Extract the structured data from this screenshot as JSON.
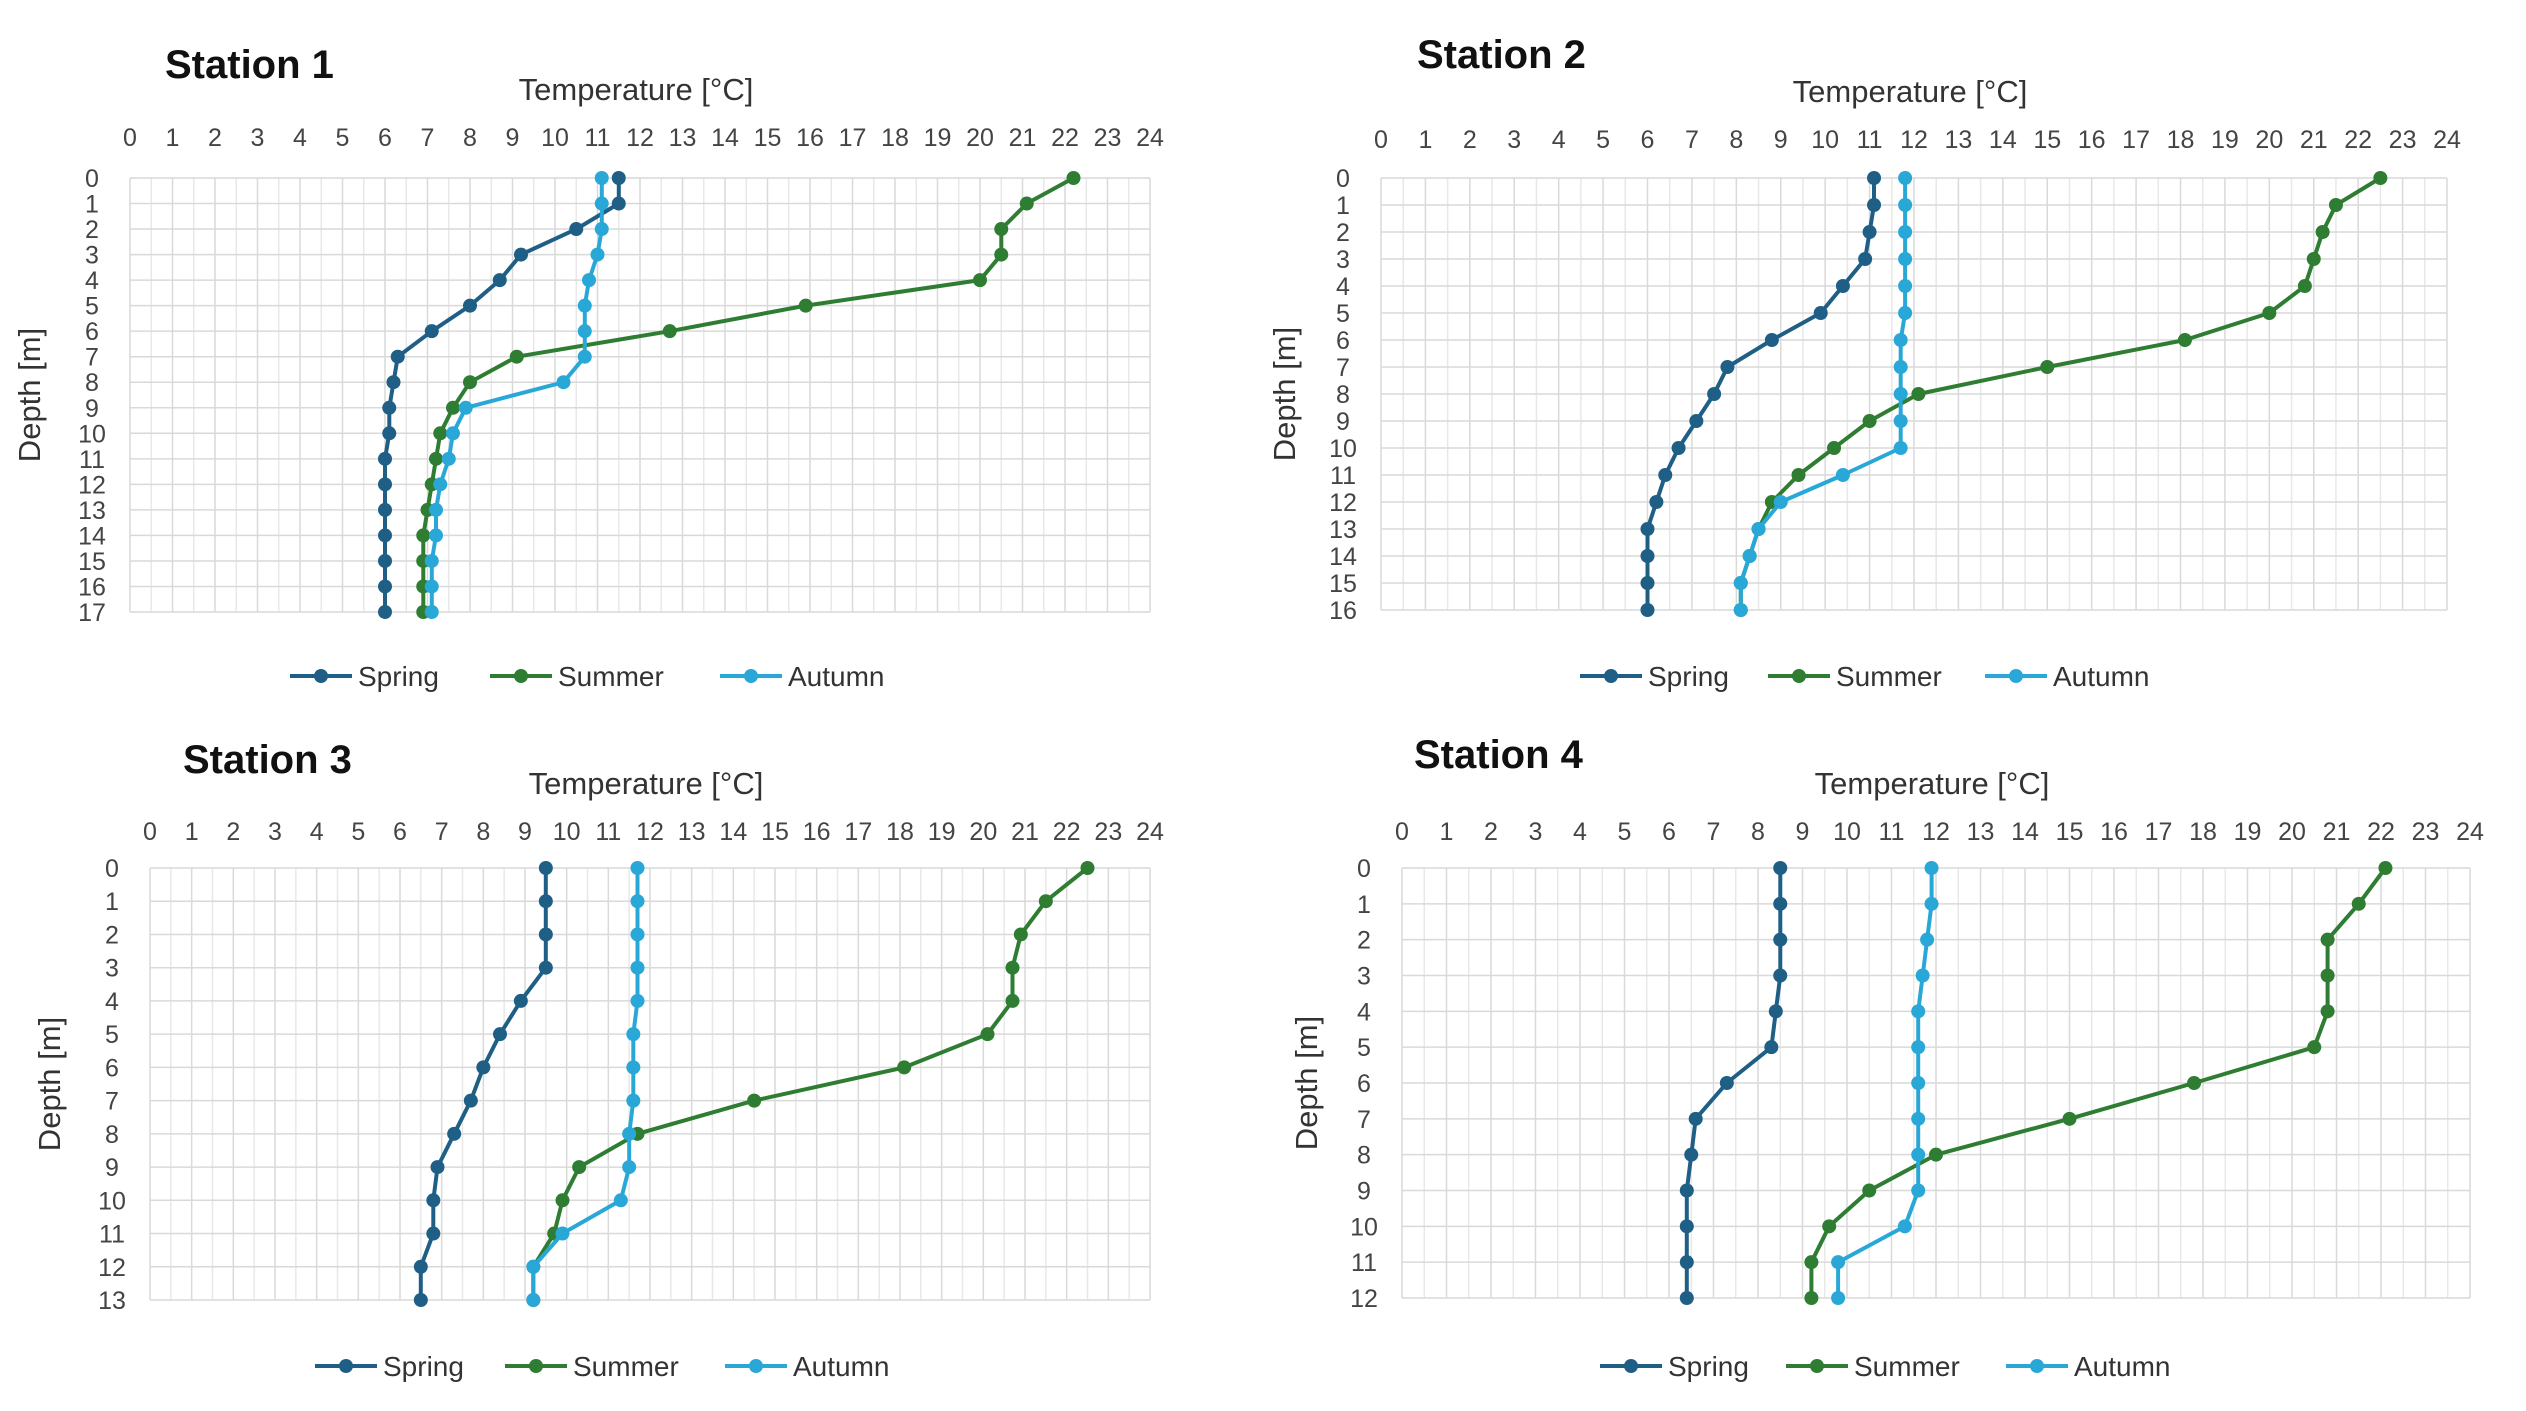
{
  "colors": {
    "spring": "#1f5f86",
    "summer": "#2e7d32",
    "autumn": "#29a8d8",
    "grid": "#d9d9d9"
  },
  "legend": [
    "Spring",
    "Summer",
    "Autumn"
  ],
  "chart_data": [
    {
      "type": "line",
      "title": "Station 1",
      "xlabel": "Temperature [°C]",
      "ylabel": "Depth [m]",
      "xlim": [
        0,
        24
      ],
      "ylim": [
        0,
        17
      ],
      "x_ticks": [
        0,
        1,
        2,
        3,
        4,
        5,
        6,
        7,
        8,
        9,
        10,
        11,
        12,
        13,
        14,
        15,
        16,
        17,
        18,
        19,
        20,
        21,
        22,
        23,
        24
      ],
      "y_ticks": [
        0,
        1,
        2,
        3,
        4,
        5,
        6,
        7,
        8,
        9,
        10,
        11,
        12,
        13,
        14,
        15,
        16,
        17
      ],
      "series": [
        {
          "name": "Spring",
          "depth": [
            0,
            1,
            2,
            3,
            4,
            5,
            6,
            7,
            8,
            9,
            10,
            11,
            12,
            13,
            14,
            15,
            16,
            17
          ],
          "temp": [
            11.5,
            11.5,
            10.5,
            9.2,
            8.7,
            8.0,
            7.1,
            6.3,
            6.2,
            6.1,
            6.1,
            6.0,
            6.0,
            6.0,
            6.0,
            6.0,
            6.0,
            6.0
          ]
        },
        {
          "name": "Summer",
          "depth": [
            0,
            1,
            2,
            3,
            4,
            5,
            6,
            7,
            8,
            9,
            10,
            11,
            12,
            13,
            14,
            15,
            16,
            17
          ],
          "temp": [
            22.2,
            21.1,
            20.5,
            20.5,
            20.0,
            15.9,
            12.7,
            9.1,
            8.0,
            7.6,
            7.3,
            7.2,
            7.1,
            7.0,
            6.9,
            6.9,
            6.9,
            6.9
          ]
        },
        {
          "name": "Autumn",
          "depth": [
            0,
            1,
            2,
            3,
            4,
            5,
            6,
            7,
            8,
            9,
            10,
            11,
            12,
            13,
            14,
            15,
            16,
            17
          ],
          "temp": [
            11.1,
            11.1,
            11.1,
            11.0,
            10.8,
            10.7,
            10.7,
            10.7,
            10.2,
            7.9,
            7.6,
            7.5,
            7.3,
            7.2,
            7.2,
            7.1,
            7.1,
            7.1
          ]
        }
      ]
    },
    {
      "type": "line",
      "title": "Station 2",
      "xlabel": "Temperature [°C]",
      "ylabel": "Depth [m]",
      "xlim": [
        0,
        24
      ],
      "ylim": [
        0,
        16
      ],
      "x_ticks": [
        0,
        1,
        2,
        3,
        4,
        5,
        6,
        7,
        8,
        9,
        10,
        11,
        12,
        13,
        14,
        15,
        16,
        17,
        18,
        19,
        20,
        21,
        22,
        23,
        24
      ],
      "y_ticks": [
        0,
        1,
        2,
        3,
        4,
        5,
        6,
        7,
        8,
        9,
        10,
        11,
        12,
        13,
        14,
        15,
        16
      ],
      "series": [
        {
          "name": "Spring",
          "depth": [
            0,
            1,
            2,
            3,
            4,
            5,
            6,
            7,
            8,
            9,
            10,
            11,
            12,
            13,
            14,
            15,
            16
          ],
          "temp": [
            11.1,
            11.1,
            11.0,
            10.9,
            10.4,
            9.9,
            8.8,
            7.8,
            7.5,
            7.1,
            6.7,
            6.4,
            6.2,
            6.0,
            6.0,
            6.0,
            6.0
          ]
        },
        {
          "name": "Summer",
          "depth": [
            0,
            1,
            2,
            3,
            4,
            5,
            6,
            7,
            8,
            9,
            10,
            11,
            12,
            13,
            14,
            15,
            16
          ],
          "temp": [
            22.5,
            21.5,
            21.2,
            21.0,
            20.8,
            20.0,
            18.1,
            15.0,
            12.1,
            11.0,
            10.2,
            9.4,
            8.8,
            8.5,
            8.3,
            8.1,
            8.1
          ]
        },
        {
          "name": "Autumn",
          "depth": [
            0,
            1,
            2,
            3,
            4,
            5,
            6,
            7,
            8,
            9,
            10,
            11,
            12,
            13,
            14,
            15,
            16
          ],
          "temp": [
            11.8,
            11.8,
            11.8,
            11.8,
            11.8,
            11.8,
            11.7,
            11.7,
            11.7,
            11.7,
            11.7,
            10.4,
            9.0,
            8.5,
            8.3,
            8.1,
            8.1
          ]
        }
      ]
    },
    {
      "type": "line",
      "title": "Station 3",
      "xlabel": "Temperature [°C]",
      "ylabel": "Depth [m]",
      "xlim": [
        0,
        24
      ],
      "ylim": [
        0,
        13
      ],
      "x_ticks": [
        0,
        1,
        2,
        3,
        4,
        5,
        6,
        7,
        8,
        9,
        10,
        11,
        12,
        13,
        14,
        15,
        16,
        17,
        18,
        19,
        20,
        21,
        22,
        23,
        24
      ],
      "y_ticks": [
        0,
        1,
        2,
        3,
        4,
        5,
        6,
        7,
        8,
        9,
        10,
        11,
        12,
        13
      ],
      "series": [
        {
          "name": "Spring",
          "depth": [
            0,
            1,
            2,
            3,
            4,
            5,
            6,
            7,
            8,
            9,
            10,
            11,
            12,
            13
          ],
          "temp": [
            9.5,
            9.5,
            9.5,
            9.5,
            8.9,
            8.4,
            8.0,
            7.7,
            7.3,
            6.9,
            6.8,
            6.8,
            6.5,
            6.5
          ]
        },
        {
          "name": "Summer",
          "depth": [
            0,
            1,
            2,
            3,
            4,
            5,
            6,
            7,
            8,
            9,
            10,
            11,
            12,
            13
          ],
          "temp": [
            22.5,
            21.5,
            20.9,
            20.7,
            20.7,
            20.1,
            18.1,
            14.5,
            11.7,
            10.3,
            9.9,
            9.7,
            9.2,
            9.2
          ]
        },
        {
          "name": "Autumn",
          "depth": [
            0,
            1,
            2,
            3,
            4,
            5,
            6,
            7,
            8,
            9,
            10,
            11,
            12,
            13
          ],
          "temp": [
            11.7,
            11.7,
            11.7,
            11.7,
            11.7,
            11.6,
            11.6,
            11.6,
            11.5,
            11.5,
            11.3,
            9.9,
            9.2,
            9.2
          ]
        }
      ]
    },
    {
      "type": "line",
      "title": "Station 4",
      "xlabel": "Temperature [°C]",
      "ylabel": "Depth [m]",
      "xlim": [
        0,
        24
      ],
      "ylim": [
        0,
        12
      ],
      "x_ticks": [
        0,
        1,
        2,
        3,
        4,
        5,
        6,
        7,
        8,
        9,
        10,
        11,
        12,
        13,
        14,
        15,
        16,
        17,
        18,
        19,
        20,
        21,
        22,
        23,
        24
      ],
      "y_ticks": [
        0,
        1,
        2,
        3,
        4,
        5,
        6,
        7,
        8,
        9,
        10,
        11,
        12
      ],
      "series": [
        {
          "name": "Spring",
          "depth": [
            0,
            1,
            2,
            3,
            4,
            5,
            6,
            7,
            8,
            9,
            10,
            11,
            12
          ],
          "temp": [
            8.5,
            8.5,
            8.5,
            8.5,
            8.4,
            8.3,
            7.3,
            6.6,
            6.5,
            6.4,
            6.4,
            6.4,
            6.4
          ]
        },
        {
          "name": "Summer",
          "depth": [
            0,
            1,
            2,
            3,
            4,
            5,
            6,
            7,
            8,
            9,
            10,
            11,
            12
          ],
          "temp": [
            22.1,
            21.5,
            20.8,
            20.8,
            20.8,
            20.5,
            17.8,
            15.0,
            12.0,
            10.5,
            9.6,
            9.2,
            9.2
          ]
        },
        {
          "name": "Autumn",
          "depth": [
            0,
            1,
            2,
            3,
            4,
            5,
            6,
            7,
            8,
            9,
            10,
            11,
            12
          ],
          "temp": [
            11.9,
            11.9,
            11.8,
            11.7,
            11.6,
            11.6,
            11.6,
            11.6,
            11.6,
            11.6,
            11.3,
            9.8,
            9.8
          ]
        }
      ]
    }
  ]
}
